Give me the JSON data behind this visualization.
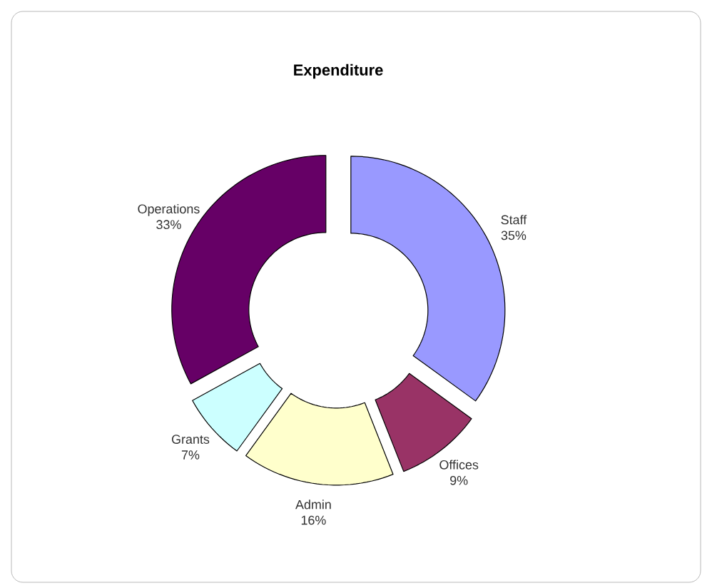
{
  "chart_data": {
    "type": "donut",
    "title": "Expenditure",
    "categories": [
      "Staff",
      "Offices",
      "Admin",
      "Grants",
      "Operations"
    ],
    "values": [
      35,
      9,
      16,
      7,
      33
    ],
    "value_labels": [
      "35%",
      "9%",
      "16%",
      "7%",
      "33%"
    ],
    "colors": [
      "#9999ff",
      "#993366",
      "#ffffcc",
      "#ccffff",
      "#660066"
    ]
  }
}
